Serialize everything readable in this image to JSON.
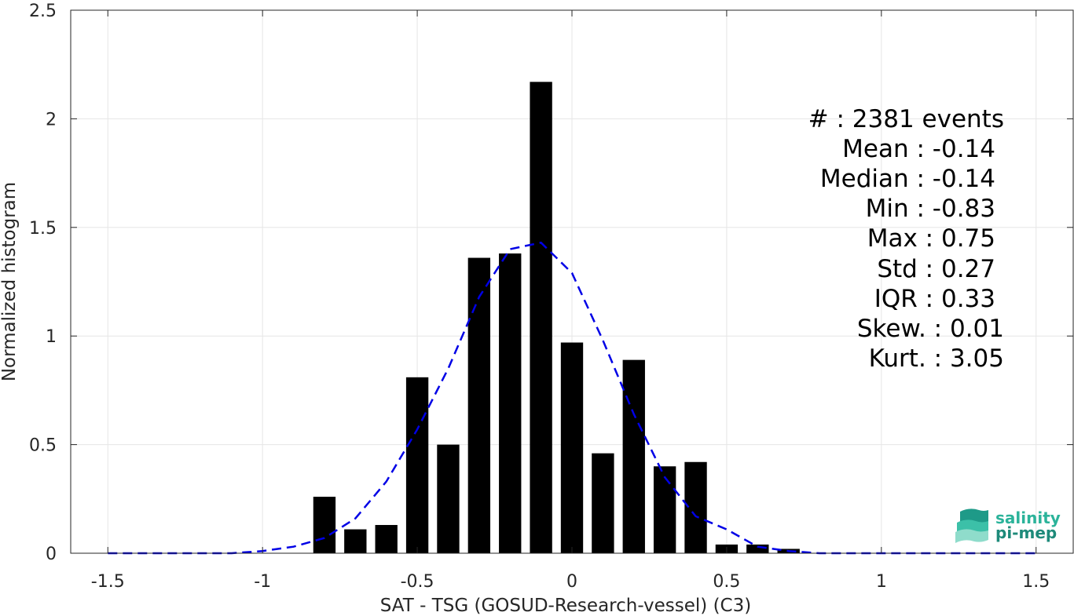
{
  "chart_data": {
    "type": "bar",
    "xlabel": "SAT - TSG (GOSUD-Research-vessel) (C3)",
    "ylabel": "Normalized histogram",
    "xlim": [
      -1.62,
      1.62
    ],
    "ylim": [
      0,
      2.5
    ],
    "xticks": [
      -1.5,
      -1,
      -0.5,
      0,
      0.5,
      1,
      1.5
    ],
    "xtick_labels": [
      "-1.5",
      "-1",
      "-0.5",
      "0",
      "0.5",
      "1",
      "1.5"
    ],
    "yticks": [
      0,
      0.5,
      1,
      1.5,
      2,
      2.5
    ],
    "ytick_labels": [
      "0",
      "0.5",
      "1",
      "1.5",
      "2",
      "2.5"
    ],
    "grid": true,
    "bar_color": "#000000",
    "bin_width": 0.1,
    "bars": [
      {
        "x": -0.8,
        "y": 0.26
      },
      {
        "x": -0.7,
        "y": 0.11
      },
      {
        "x": -0.6,
        "y": 0.13
      },
      {
        "x": -0.5,
        "y": 0.81
      },
      {
        "x": -0.4,
        "y": 0.5
      },
      {
        "x": -0.3,
        "y": 1.36
      },
      {
        "x": -0.2,
        "y": 1.38
      },
      {
        "x": -0.1,
        "y": 2.17
      },
      {
        "x": 0.0,
        "y": 0.97
      },
      {
        "x": 0.1,
        "y": 0.46
      },
      {
        "x": 0.2,
        "y": 0.89
      },
      {
        "x": 0.3,
        "y": 0.4
      },
      {
        "x": 0.4,
        "y": 0.42
      },
      {
        "x": 0.5,
        "y": 0.04
      },
      {
        "x": 0.6,
        "y": 0.04
      },
      {
        "x": 0.7,
        "y": 0.02
      }
    ],
    "fit_curve": {
      "color": "#0000e6",
      "style": "dashed",
      "x": [
        -1.5,
        -1.4,
        -1.3,
        -1.2,
        -1.1,
        -1.0,
        -0.9,
        -0.8,
        -0.7,
        -0.6,
        -0.5,
        -0.4,
        -0.3,
        -0.2,
        -0.1,
        0.0,
        0.1,
        0.2,
        0.3,
        0.4,
        0.5,
        0.6,
        0.7,
        0.8,
        0.9,
        1.0,
        1.1,
        1.2,
        1.3,
        1.4,
        1.5
      ],
      "y": [
        0.0,
        0.0,
        0.0,
        0.0,
        0.0,
        0.01,
        0.03,
        0.07,
        0.16,
        0.33,
        0.57,
        0.85,
        1.18,
        1.4,
        1.43,
        1.29,
        0.98,
        0.64,
        0.35,
        0.17,
        0.11,
        0.03,
        0.01,
        0.0,
        0.0,
        0.0,
        0.0,
        0.0,
        0.0,
        0.0,
        0.0
      ]
    }
  },
  "stats": {
    "events": "#  : 2381 events",
    "mean": "Mean : -0.14",
    "median": "Median : -0.14",
    "min": "Min : -0.83",
    "max": "Max : 0.75",
    "std": "Std : 0.27",
    "iqr": "IQR : 0.33",
    "skew": "Skew. : 0.01",
    "kurt": "Kurt. : 3.05"
  },
  "logo": {
    "line1": "salinity",
    "line2": "pi-mep",
    "color1": "#2bb39a",
    "color2": "#1e8a7a"
  }
}
